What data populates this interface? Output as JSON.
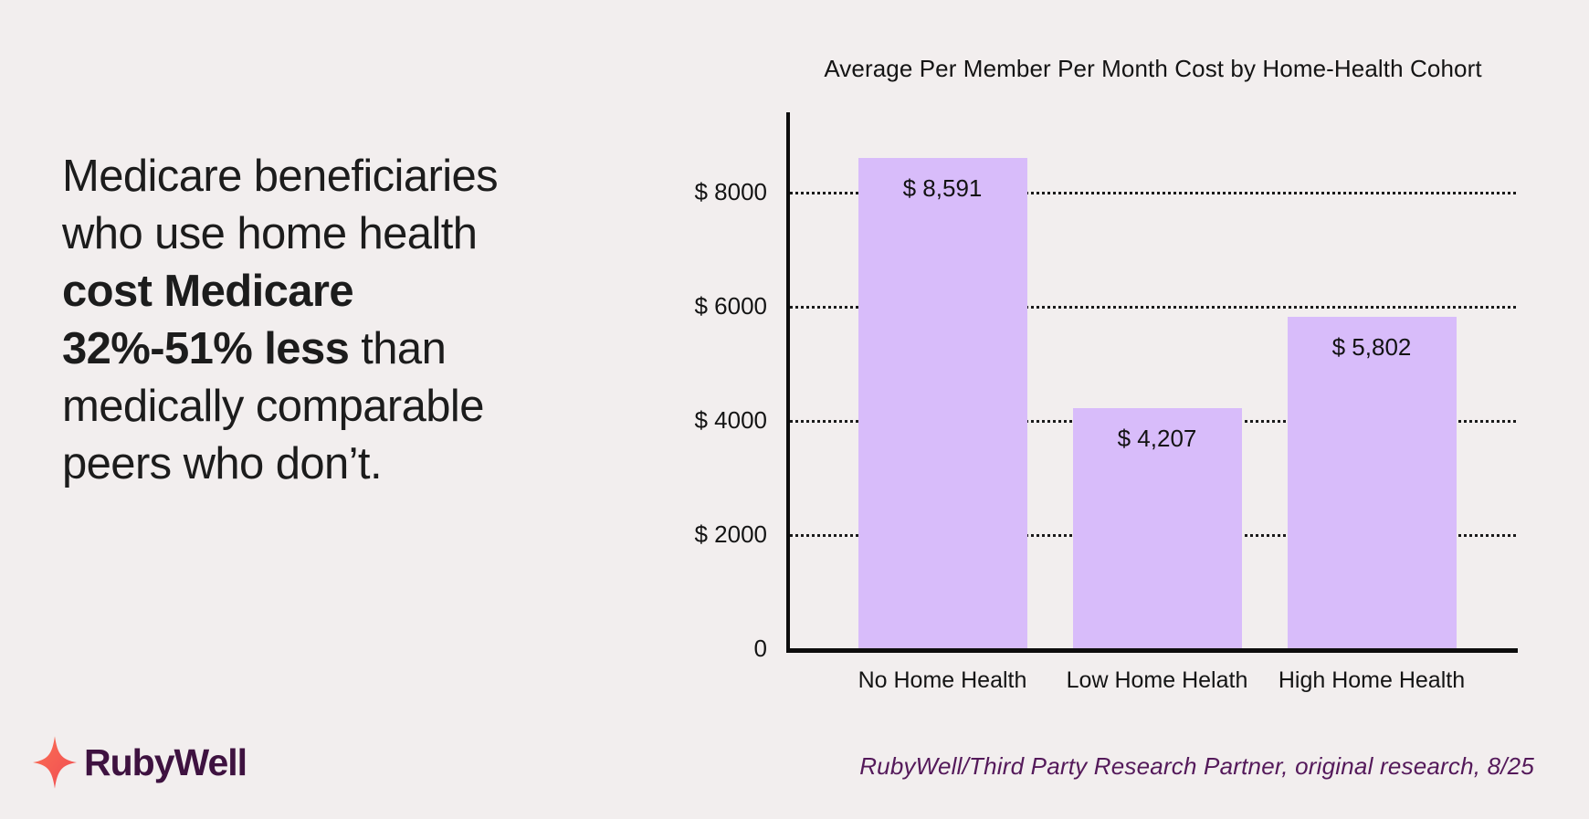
{
  "page": {
    "background_color": "#F2EEEE"
  },
  "headline": {
    "lines": [
      {
        "parts": [
          {
            "text": "Medicare beneficiaries",
            "bold": false
          }
        ]
      },
      {
        "parts": [
          {
            "text": "who use home health",
            "bold": false
          }
        ]
      },
      {
        "parts": [
          {
            "text": "cost Medicare",
            "bold": true
          }
        ]
      },
      {
        "parts": [
          {
            "text": "32%-51% less",
            "bold": true
          },
          {
            "text": " than",
            "bold": false
          }
        ]
      },
      {
        "parts": [
          {
            "text": "medically comparable",
            "bold": false
          }
        ]
      },
      {
        "parts": [
          {
            "text": "peers who don’t.",
            "bold": false
          }
        ]
      }
    ]
  },
  "chart_data": {
    "type": "bar",
    "title": "Average Per Member Per Month Cost by Home-Health Cohort",
    "categories": [
      "No Home Health",
      "Low Home Helath",
      "High Home Health"
    ],
    "values": [
      8591,
      4207,
      5802
    ],
    "value_labels": [
      "$ 8,591",
      "$ 4,207",
      "$ 5,802"
    ],
    "yticks": [
      8000,
      6000,
      4000,
      2000,
      0
    ],
    "ytick_labels": [
      "$ 8000",
      "$ 6000",
      "$ 4000",
      "$ 2000",
      "0"
    ],
    "ylim": [
      0,
      9344
    ],
    "xlabel": "",
    "ylabel": "",
    "grid": "horizontal dotted",
    "legend": "none",
    "bar_color": "#D8BCFA",
    "axis_color": "#0d0d0d"
  },
  "footer": {
    "logo_text": "RubyWell",
    "citation": "RubyWell/Third Party Research Partner, original research, 8/25"
  },
  "colors": {
    "background": "#F2EEEE",
    "bar": "#D8BCFA",
    "headline_text": "#1c1c1c",
    "citation_text": "#54195A",
    "logo_text": "#3E1240",
    "sparkle_top": "#FB7054",
    "sparkle_bottom": "#F04B52"
  }
}
